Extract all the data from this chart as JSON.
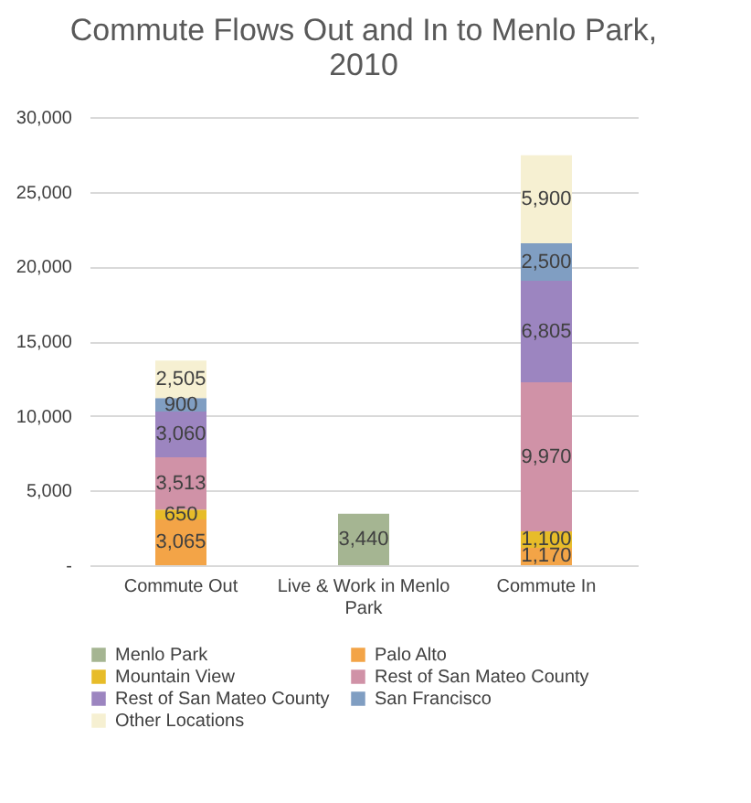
{
  "chart_data": {
    "type": "bar",
    "stacked": true,
    "title": "Commute Flows Out and In to Menlo Park, 2010",
    "categories": [
      "Commute Out",
      "Live & Work in Menlo Park",
      "Commute In"
    ],
    "series": [
      {
        "name": "Menlo Park",
        "color": "#a5b592",
        "values": [
          null,
          3440,
          null
        ],
        "value_labels": [
          null,
          "3,440",
          null
        ]
      },
      {
        "name": "Palo Alto",
        "color": "#f3a447",
        "values": [
          3065,
          null,
          1170
        ],
        "value_labels": [
          "3,065",
          null,
          "1,170"
        ]
      },
      {
        "name": "Mountain View",
        "color": "#e7bc29",
        "values": [
          650,
          null,
          1100
        ],
        "value_labels": [
          "650",
          null,
          "1,100"
        ]
      },
      {
        "name": "Rest of San Mateo County",
        "color": "#d092a7",
        "values": [
          3513,
          null,
          9970
        ],
        "value_labels": [
          "3,513",
          null,
          "9,970"
        ]
      },
      {
        "name": "Rest of San Mateo County",
        "color": "#9c85c0",
        "values": [
          3060,
          null,
          6805
        ],
        "value_labels": [
          "3,060",
          null,
          "6,805"
        ]
      },
      {
        "name": "San Francisco",
        "color": "#809ec2",
        "values": [
          900,
          null,
          2500
        ],
        "value_labels": [
          "900",
          null,
          "2,500"
        ]
      },
      {
        "name": "Other Locations",
        "color": "#f6f0d2",
        "values": [
          2505,
          null,
          5900
        ],
        "value_labels": [
          "2,505",
          null,
          "5,900"
        ]
      }
    ],
    "ylim": [
      0,
      30000
    ],
    "yticks": [
      {
        "value": 0,
        "label": "-"
      },
      {
        "value": 5000,
        "label": "5,000"
      },
      {
        "value": 10000,
        "label": "10,000"
      },
      {
        "value": 15000,
        "label": "15,000"
      },
      {
        "value": 20000,
        "label": "20,000"
      },
      {
        "value": 25000,
        "label": "25,000"
      },
      {
        "value": 30000,
        "label": "30,000"
      }
    ],
    "grid": "y",
    "legend": "bottom"
  }
}
